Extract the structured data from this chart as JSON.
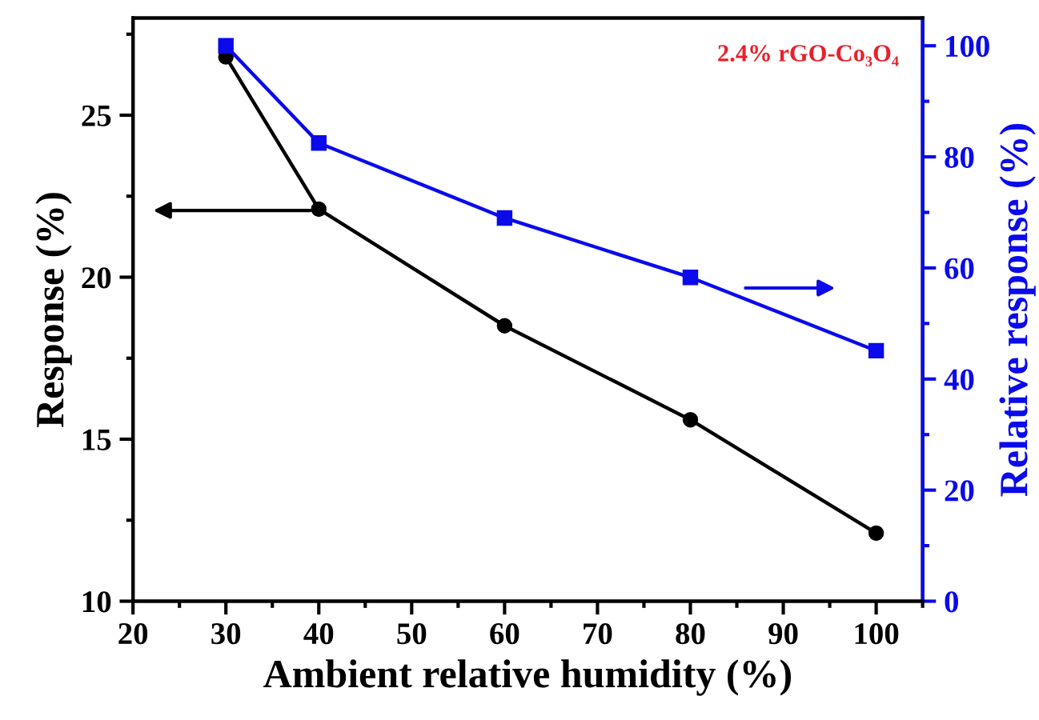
{
  "chart_data": {
    "type": "line",
    "xlabel": "Ambient relative humidity (%)",
    "ylabel": "Response (%)",
    "y2label": "Relative response (%)",
    "x": [
      30,
      40,
      60,
      80,
      100
    ],
    "series": [
      {
        "color": "#000000",
        "marker": "circle",
        "values": [
          26.8,
          22.1,
          18.5,
          15.6,
          12.1
        ]
      },
      {
        "color": "#0a0aeb",
        "marker": "square",
        "axis": "y2",
        "values": [
          100,
          82.5,
          69.0,
          58.3,
          45.1
        ]
      }
    ],
    "annotations": [
      "2.4% rGO-Co₃O₄"
    ],
    "xlim": [
      20,
      105
    ],
    "xticks": [
      20,
      30,
      40,
      50,
      60,
      70,
      80,
      90,
      100
    ],
    "ylim": [
      10,
      28
    ],
    "yticks": [
      10,
      15,
      20,
      25
    ],
    "y2lim": [
      0,
      105
    ],
    "y2ticks": [
      0,
      20,
      40,
      60,
      80,
      100
    ],
    "grid": false,
    "legend": false
  }
}
